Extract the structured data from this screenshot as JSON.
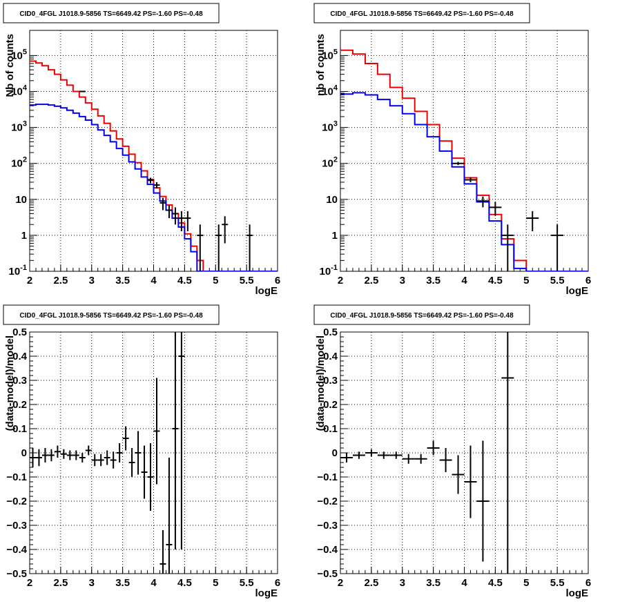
{
  "chart_data": [
    {
      "id": "counts-fine",
      "type": "histogram",
      "title": "CID0_4FGL J1018.9-5856 TS=6649.42 PS=-1.60 PS=-0.48",
      "xlabel": "logE",
      "ylabel": "Nb of counts",
      "xlim": [
        2,
        6
      ],
      "ylim": [
        0.1,
        500000
      ],
      "yscale": "log",
      "xticks": [
        "2",
        "2.5",
        "3",
        "3.5",
        "4",
        "4.5",
        "5",
        "5.5",
        "6"
      ],
      "yticks": [
        "10^-1",
        "1",
        "10",
        "10^2",
        "10^3",
        "10^4",
        "10^5"
      ],
      "grid": true,
      "bin_edges": [
        2.0,
        2.1,
        2.2,
        2.3,
        2.4,
        2.5,
        2.6,
        2.7,
        2.8,
        2.9,
        3.0,
        3.1,
        3.2,
        3.3,
        3.4,
        3.5,
        3.6,
        3.7,
        3.8,
        3.9,
        4.0,
        4.1,
        4.2,
        4.3,
        4.4,
        4.5,
        4.6,
        4.7,
        4.8,
        4.9,
        5.0,
        5.1,
        5.2,
        5.3,
        5.4,
        5.5,
        5.6,
        5.7,
        5.8,
        5.9,
        6.0
      ],
      "series": [
        {
          "color": "#ee0000",
          "values": [
            70000,
            62000,
            52000,
            40000,
            30000,
            21000,
            15000,
            10000,
            7000,
            4800,
            3200,
            2100,
            1300,
            800,
            480,
            300,
            180,
            105,
            62,
            36,
            21,
            12,
            7,
            4,
            2.2,
            1.1,
            0.5,
            0.2,
            0.1,
            0.1,
            0.1,
            0.1,
            0.1,
            0.1,
            0.1,
            0.1,
            0.1,
            0.1,
            0.1,
            0.1
          ]
        },
        {
          "color": "#0000ee",
          "values": [
            4200,
            4400,
            4400,
            4200,
            3900,
            3500,
            3000,
            2500,
            2000,
            1600,
            1200,
            850,
            600,
            400,
            260,
            170,
            110,
            70,
            42,
            26,
            15,
            9,
            5,
            3,
            1.7,
            0.8,
            0.35,
            0.1,
            0.1,
            0.1,
            0.1,
            0.1,
            0.1,
            0.1,
            0.1,
            0.1,
            0.1,
            0.1,
            0.1,
            0.1
          ]
        }
      ],
      "points": [
        {
          "x": 2.85,
          "y": 10000,
          "ylo": 9800,
          "yhi": 10200
        },
        {
          "x": 3.95,
          "y": 34,
          "ylo": 28,
          "yhi": 40
        },
        {
          "x": 4.05,
          "y": 25,
          "ylo": 20,
          "yhi": 30
        },
        {
          "x": 4.15,
          "y": 8,
          "ylo": 5,
          "yhi": 11
        },
        {
          "x": 4.25,
          "y": 5,
          "ylo": 3,
          "yhi": 7
        },
        {
          "x": 4.35,
          "y": 4,
          "ylo": 2,
          "yhi": 6
        },
        {
          "x": 4.45,
          "y": 3,
          "ylo": 1.3,
          "yhi": 4.7
        },
        {
          "x": 4.55,
          "y": 3,
          "ylo": 1.3,
          "yhi": 4.7
        },
        {
          "x": 4.75,
          "y": 1,
          "ylo": 0.1,
          "yhi": 2.0
        },
        {
          "x": 5.05,
          "y": 1,
          "ylo": 0.1,
          "yhi": 2.0
        },
        {
          "x": 5.15,
          "y": 2,
          "ylo": 0.6,
          "yhi": 3.4
        },
        {
          "x": 5.55,
          "y": 1,
          "ylo": 0.1,
          "yhi": 2.0
        }
      ]
    },
    {
      "id": "counts-coarse",
      "type": "histogram",
      "title": "CID0_4FGL J1018.9-5856 TS=6649.42 PS=-1.60 PS=-0.48",
      "xlabel": "logE",
      "ylabel": "nb of counts",
      "xlim": [
        2,
        6
      ],
      "ylim": [
        0.1,
        500000
      ],
      "yscale": "log",
      "xticks": [
        "2",
        "2.5",
        "3",
        "3.5",
        "4",
        "4.5",
        "5",
        "5.5",
        "6"
      ],
      "yticks": [
        "10^-1",
        "1",
        "10",
        "10^2",
        "10^3",
        "10^4",
        "10^5"
      ],
      "grid": true,
      "bin_edges": [
        2.0,
        2.2,
        2.4,
        2.6,
        2.8,
        3.0,
        3.2,
        3.4,
        3.6,
        3.8,
        4.0,
        4.2,
        4.4,
        4.6,
        4.8,
        5.0,
        5.2,
        5.4,
        5.6,
        5.8,
        6.0
      ],
      "series": [
        {
          "color": "#ee0000",
          "values": [
            140000,
            110000,
            60000,
            30000,
            13000,
            6500,
            2800,
            1200,
            420,
            140,
            40,
            13,
            3.8,
            0.8,
            0.2,
            0.1,
            0.1,
            0.1,
            0.1,
            0.1
          ]
        },
        {
          "color": "#0000ee",
          "values": [
            8500,
            9200,
            8000,
            6000,
            4000,
            2400,
            1200,
            550,
            220,
            80,
            27,
            8.5,
            2.5,
            0.55,
            0.12,
            0.1,
            0.1,
            0.1,
            0.1,
            0.1
          ]
        }
      ],
      "points": [
        {
          "x": 3.9,
          "y": 100,
          "ylo": 90,
          "yhi": 110
        },
        {
          "x": 4.1,
          "y": 35,
          "ylo": 30,
          "yhi": 41
        },
        {
          "x": 4.3,
          "y": 9,
          "ylo": 6,
          "yhi": 12
        },
        {
          "x": 4.5,
          "y": 6,
          "ylo": 3.5,
          "yhi": 8.5
        },
        {
          "x": 4.7,
          "y": 1,
          "ylo": 0.1,
          "yhi": 2.0
        },
        {
          "x": 5.1,
          "y": 3,
          "ylo": 1.3,
          "yhi": 4.7
        },
        {
          "x": 5.5,
          "y": 1,
          "ylo": 0.1,
          "yhi": 2.0
        }
      ]
    },
    {
      "id": "residuals-fine",
      "type": "scatter",
      "title": "CID0_4FGL J1018.9-5856 TS=6649.42 PS=-1.60 PS=-0.48",
      "xlabel": "logE",
      "ylabel": "(data-model)/model",
      "xlim": [
        2,
        6
      ],
      "ylim": [
        -0.5,
        0.5
      ],
      "yscale": "linear",
      "xticks": [
        "2",
        "2.5",
        "3",
        "3.5",
        "4",
        "4.5",
        "5",
        "5.5",
        "6"
      ],
      "yticks": [
        "-0.5",
        "-0.4",
        "-0.3",
        "-0.2",
        "-0.1",
        "0",
        "0.1",
        "0.2",
        "0.3",
        "0.4",
        "0.5"
      ],
      "grid": true,
      "xerr": 0.05,
      "points": [
        {
          "x": 2.05,
          "y": -0.02,
          "err": 0.04
        },
        {
          "x": 2.15,
          "y": -0.02,
          "err": 0.035
        },
        {
          "x": 2.25,
          "y": -0.01,
          "err": 0.03
        },
        {
          "x": 2.35,
          "y": -0.01,
          "err": 0.025
        },
        {
          "x": 2.45,
          "y": 0.005,
          "err": 0.025
        },
        {
          "x": 2.55,
          "y": -0.005,
          "err": 0.02
        },
        {
          "x": 2.65,
          "y": -0.01,
          "err": 0.02
        },
        {
          "x": 2.75,
          "y": -0.01,
          "err": 0.02
        },
        {
          "x": 2.85,
          "y": -0.02,
          "err": 0.02
        },
        {
          "x": 2.95,
          "y": 0.01,
          "err": 0.02
        },
        {
          "x": 3.05,
          "y": -0.03,
          "err": 0.025
        },
        {
          "x": 3.15,
          "y": -0.03,
          "err": 0.025
        },
        {
          "x": 3.25,
          "y": -0.02,
          "err": 0.03
        },
        {
          "x": 3.35,
          "y": -0.03,
          "err": 0.035
        },
        {
          "x": 3.45,
          "y": 0.0,
          "err": 0.04
        },
        {
          "x": 3.55,
          "y": 0.06,
          "err": 0.05
        },
        {
          "x": 3.65,
          "y": -0.04,
          "err": 0.06
        },
        {
          "x": 3.75,
          "y": 0.0,
          "err": 0.09
        },
        {
          "x": 3.85,
          "y": -0.08,
          "err": 0.11
        },
        {
          "x": 3.95,
          "y": -0.1,
          "err": 0.14
        },
        {
          "x": 4.05,
          "y": 0.09,
          "err": 0.22
        },
        {
          "x": 4.15,
          "y": -0.46,
          "err": 0.14
        },
        {
          "x": 4.25,
          "y": -0.38,
          "err": 0.36
        },
        {
          "x": 4.35,
          "y": 0.1,
          "err": 0.5
        },
        {
          "x": 4.45,
          "y": 0.4,
          "err": 0.8
        }
      ]
    },
    {
      "id": "residuals-coarse",
      "type": "scatter",
      "title": "CID0_4FGL J1018.9-5856 TS=6649.42 PS=-1.60 PS=-0.48",
      "xlabel": "logE",
      "ylabel": "(data-model)/model",
      "xlim": [
        2,
        6
      ],
      "ylim": [
        -0.5,
        0.5
      ],
      "yscale": "linear",
      "xticks": [
        "2",
        "2.5",
        "3",
        "3.5",
        "4",
        "4.5",
        "5",
        "5.5",
        "6"
      ],
      "yticks": [
        "-0.5",
        "-0.4",
        "-0.3",
        "-0.2",
        "-0.1",
        "0",
        "0.1",
        "0.2",
        "0.3",
        "0.4",
        "0.5"
      ],
      "grid": true,
      "xerr": 0.1,
      "points": [
        {
          "x": 2.1,
          "y": -0.02,
          "err": 0.02
        },
        {
          "x": 2.3,
          "y": -0.01,
          "err": 0.015
        },
        {
          "x": 2.5,
          "y": 0.0,
          "err": 0.015
        },
        {
          "x": 2.7,
          "y": -0.01,
          "err": 0.015
        },
        {
          "x": 2.9,
          "y": -0.01,
          "err": 0.015
        },
        {
          "x": 3.1,
          "y": -0.025,
          "err": 0.02
        },
        {
          "x": 3.3,
          "y": -0.025,
          "err": 0.02
        },
        {
          "x": 3.5,
          "y": 0.02,
          "err": 0.03
        },
        {
          "x": 3.7,
          "y": -0.03,
          "err": 0.05
        },
        {
          "x": 3.9,
          "y": -0.09,
          "err": 0.08
        },
        {
          "x": 4.1,
          "y": -0.12,
          "err": 0.15
        },
        {
          "x": 4.3,
          "y": -0.2,
          "err": 0.25
        },
        {
          "x": 4.7,
          "y": 0.31,
          "err": 0.82
        }
      ]
    }
  ]
}
